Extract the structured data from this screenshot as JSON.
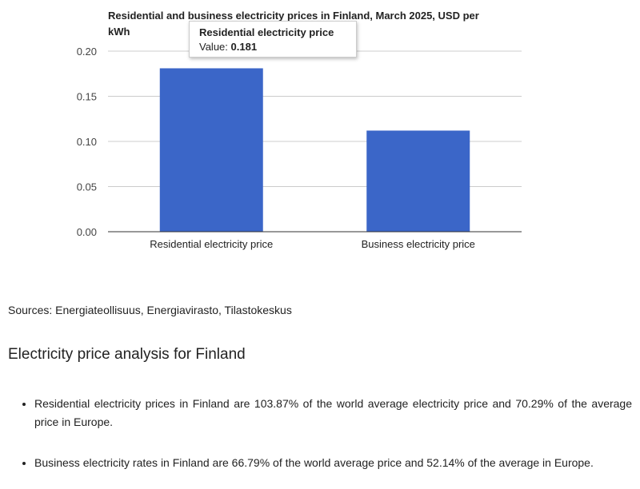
{
  "chart_data": {
    "type": "bar",
    "title": "Residential and business electricity prices in Finland, March 2025, USD per kWh",
    "categories": [
      "Residential electricity price",
      "Business electricity price"
    ],
    "values": [
      0.181,
      0.112
    ],
    "ylim": [
      0,
      0.2
    ],
    "yticks": [
      "0.00",
      "0.05",
      "0.10",
      "0.15",
      "0.20"
    ],
    "grid": true,
    "bar_color": "#3b66c8"
  },
  "tooltip": {
    "title": "Residential electricity price",
    "value_label": "Value:",
    "value": "0.181"
  },
  "sources": "Sources: Energiateollisuus, Energiavirasto, Tilastokeskus",
  "analysis": {
    "heading": "Electricity price analysis for Finland",
    "items": [
      "Residential electricity prices in Finland are 103.87% of the world average electricity price and 70.29% of the average price in Europe.",
      "Business electricity rates in Finland are 66.79% of the world average price and 52.14% of the average in Europe."
    ]
  }
}
